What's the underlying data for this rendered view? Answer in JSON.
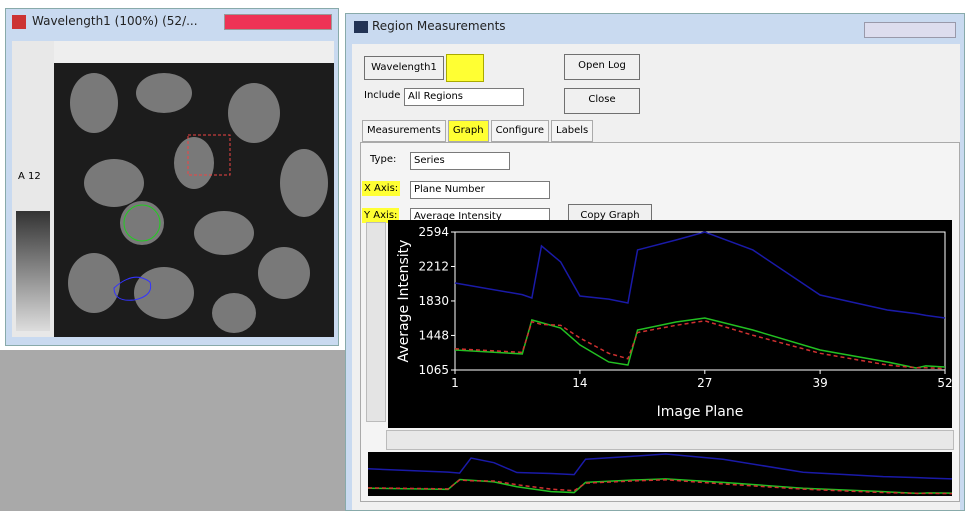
{
  "image_window": {
    "title": "Wavelength1 (100%) (52/...",
    "tool_label": "A 12"
  },
  "measure_window": {
    "title": "Region Measurements",
    "wavelength_button": "Wavelength1",
    "open_log": "Open Log",
    "close": "Close",
    "include_label": "Include",
    "include_value": "All Regions",
    "tabs": [
      "Measurements",
      "Graph",
      "Configure",
      "Labels"
    ],
    "type_label": "Type:",
    "type_value": "Series",
    "x_axis_label": "X Axis:",
    "x_axis_value": "Plane Number",
    "y_axis_label": "Y Axis:",
    "y_axis_value": "Average Intensity",
    "copy_graph": "Copy Graph"
  },
  "chart_data": {
    "type": "line",
    "x_label": "Image Plane",
    "y_label": "Average Intensity",
    "x": [
      1,
      8,
      9,
      10,
      12,
      14,
      17,
      19,
      20,
      24,
      27,
      32,
      39,
      46,
      49,
      50,
      52
    ],
    "series": [
      {
        "color": "#1a1aa8",
        "style": "solid",
        "values": [
          2029,
          1900,
          1863,
          2440,
          2262,
          1885,
          1850,
          1807,
          2395,
          2505,
          2594,
          2395,
          1896,
          1730,
          1690,
          1670,
          1641
        ]
      },
      {
        "color": "#22c022",
        "style": "solid",
        "values": [
          1287,
          1243,
          1620,
          1590,
          1530,
          1343,
          1154,
          1120,
          1508,
          1597,
          1641,
          1508,
          1287,
          1154,
          1087,
          1110,
          1098
        ]
      },
      {
        "color": "#d03030",
        "style": "dashed",
        "values": [
          1300,
          1260,
          1600,
          1570,
          1560,
          1420,
          1250,
          1190,
          1480,
          1560,
          1610,
          1450,
          1250,
          1120,
          1090,
          1090,
          1080
        ]
      }
    ],
    "xlim": [
      1,
      52
    ],
    "xticks": [
      1,
      14,
      27,
      39,
      52
    ],
    "ylim": [
      1065,
      2594
    ],
    "yticks": [
      1065,
      1448,
      1830,
      2212,
      2594
    ]
  }
}
